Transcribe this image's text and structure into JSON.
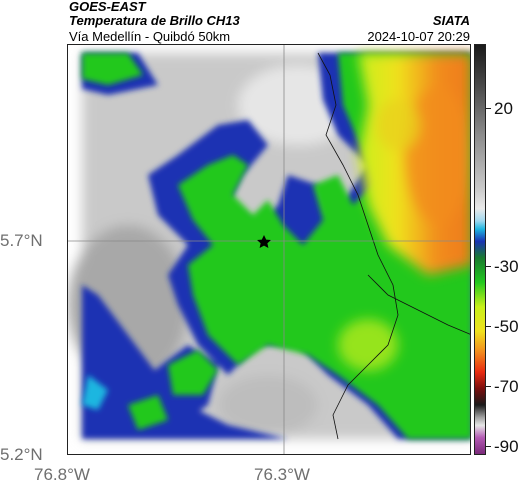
{
  "header": {
    "source": "GOES-EAST",
    "product": "Temperatura de Brillo CH13",
    "region": "Vía Medellín - Quibdó 50km",
    "org": "SIATA",
    "timestamp": "2024-10-07 20:29"
  },
  "axes": {
    "lat_labels": [
      "5.7°N",
      "5.2°N"
    ],
    "lon_labels": [
      "76.8°W",
      "76.3°W"
    ]
  },
  "colorbar": {
    "tick_labels": [
      "20",
      "-30",
      "-50",
      "-70",
      "-90"
    ],
    "colors": {
      "gray": "#c9c9c9",
      "blue": "#1a33b3",
      "cyan": "#1fb6e0",
      "green": "#22c81f",
      "lime": "#c8f01a",
      "yellow": "#f0e11e",
      "orange": "#f28c1e",
      "red": "#e82a10",
      "purple": "#b45ab4"
    }
  },
  "map": {
    "marker": "star-icon"
  }
}
